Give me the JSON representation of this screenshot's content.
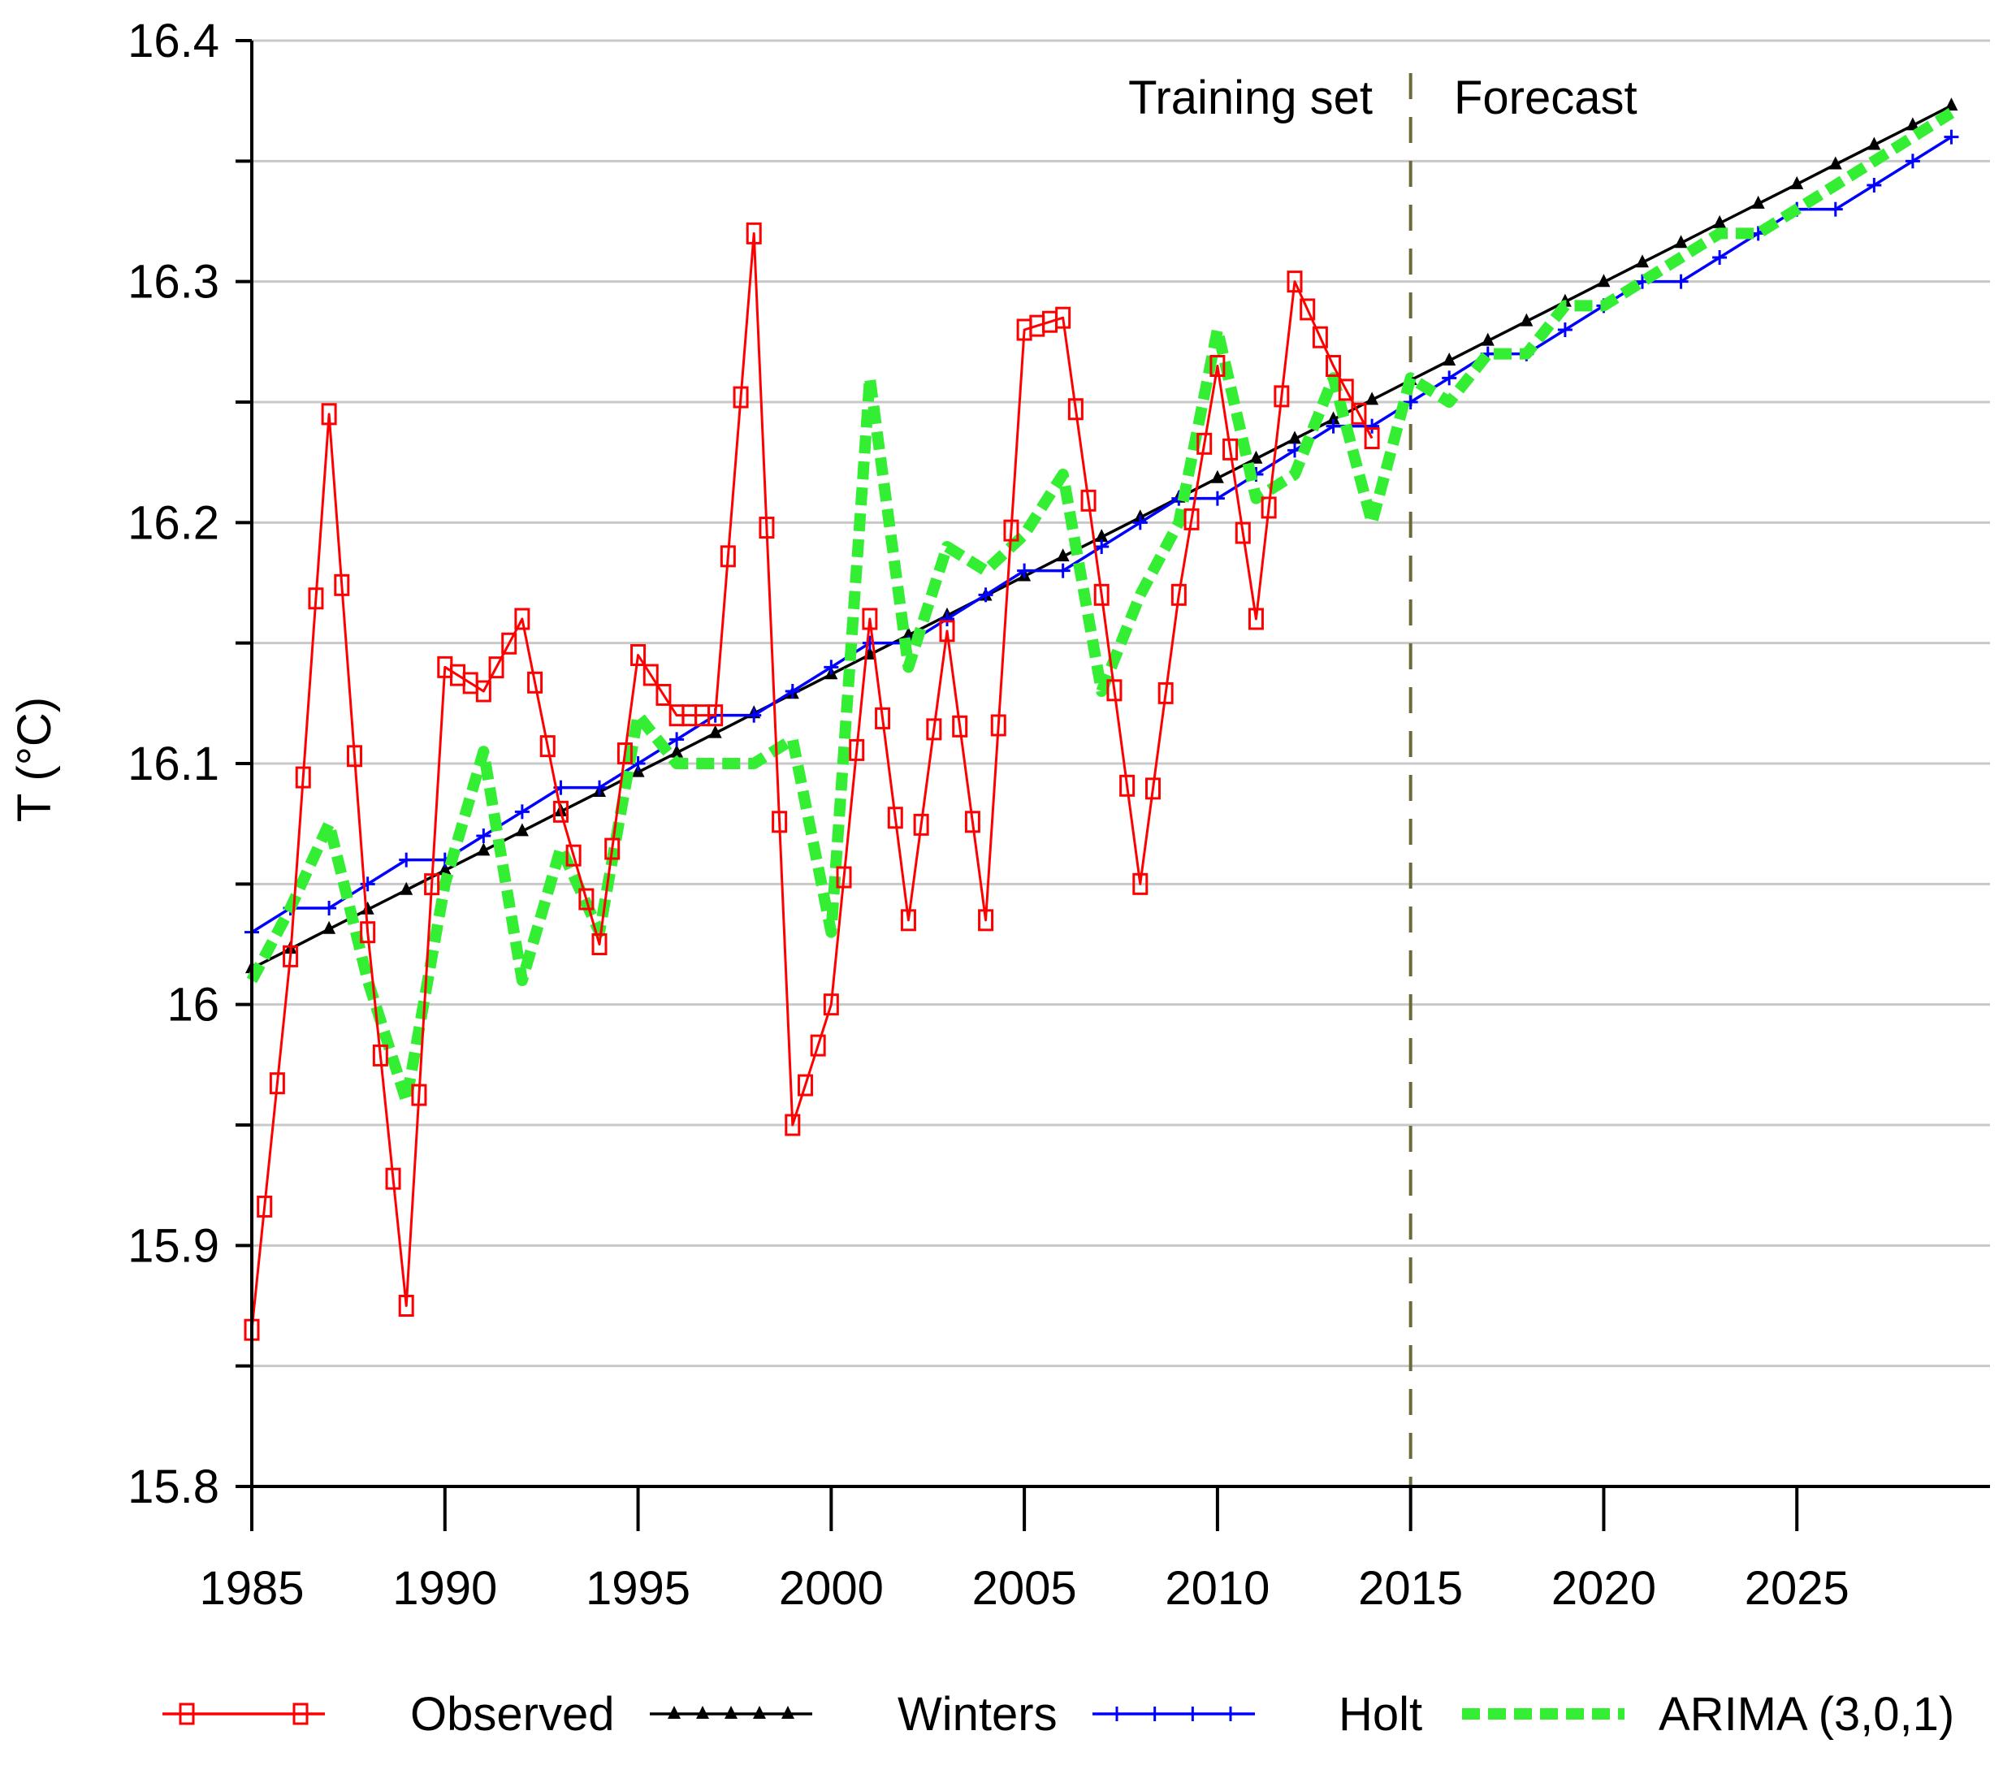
{
  "chart_data": {
    "type": "line",
    "title": "",
    "xlabel": "",
    "ylabel": "T (°C)",
    "xlim": [
      1985,
      2030
    ],
    "ylim": [
      15.8,
      16.4
    ],
    "x_ticks": [
      1985,
      1990,
      1995,
      2000,
      2005,
      2010,
      2015,
      2020,
      2025
    ],
    "y_ticks": [
      15.8,
      15.9,
      16,
      16.1,
      16.2,
      16.3,
      16.4
    ],
    "y_tick_labels": [
      "15.8",
      "15.9",
      "16",
      "16.1",
      "16.2",
      "16.3",
      "16.4"
    ],
    "grid": "horizontal",
    "legend_position": "bottom",
    "divider": {
      "x": 2015,
      "left_label": "Training set",
      "right_label": "Forecast",
      "color": "#6b6b3a"
    },
    "series": [
      {
        "name": "Observed",
        "color": "#ff0000",
        "marker": "square-open",
        "x": [
          1985,
          1986,
          1987,
          1988,
          1989,
          1990,
          1991,
          1992,
          1993,
          1994,
          1995,
          1996,
          1997,
          1998,
          1999,
          2000,
          2001,
          2002,
          2003,
          2004,
          2005,
          2006,
          2007,
          2008,
          2009,
          2010,
          2011,
          2012,
          2013,
          2014
        ],
        "values": [
          15.865,
          16.02,
          16.245,
          16.03,
          15.875,
          16.14,
          16.13,
          16.16,
          16.08,
          16.025,
          16.145,
          16.12,
          16.12,
          16.32,
          15.95,
          16.0,
          16.16,
          16.035,
          16.155,
          16.035,
          16.28,
          16.285,
          16.17,
          16.05,
          16.17,
          16.265,
          16.16,
          16.3,
          16.265,
          16.235
        ]
      },
      {
        "name": "Winters",
        "color": "#000000",
        "marker": "triangle-filled",
        "x": [
          1985,
          1986,
          1987,
          1988,
          1989,
          1990,
          1991,
          1992,
          1993,
          1994,
          1995,
          1996,
          1997,
          1998,
          1999,
          2000,
          2001,
          2002,
          2003,
          2004,
          2005,
          2006,
          2007,
          2008,
          2009,
          2010,
          2011,
          2012,
          2013,
          2014,
          2015,
          2016,
          2017,
          2018,
          2019,
          2020,
          2021,
          2022,
          2023,
          2024,
          2025,
          2026,
          2027,
          2028,
          2029
        ],
        "values": [
          16.015,
          16.0231,
          16.0313,
          16.0394,
          16.0475,
          16.0557,
          16.0638,
          16.0719,
          16.0801,
          16.0882,
          16.0964,
          16.1045,
          16.1126,
          16.1208,
          16.1289,
          16.137,
          16.1452,
          16.1533,
          16.1614,
          16.1696,
          16.1777,
          16.1859,
          16.194,
          16.2021,
          16.2103,
          16.2184,
          16.2265,
          16.2347,
          16.2428,
          16.2509,
          16.2591,
          16.2672,
          16.2754,
          16.2835,
          16.2916,
          16.2998,
          16.3079,
          16.316,
          16.3242,
          16.3323,
          16.3404,
          16.3486,
          16.3567,
          16.3648,
          16.373
        ]
      },
      {
        "name": "Holt",
        "color": "#0000ff",
        "marker": "plus",
        "x": [
          1985,
          1986,
          1987,
          1988,
          1989,
          1990,
          1991,
          1992,
          1993,
          1994,
          1995,
          1996,
          1997,
          1998,
          1999,
          2000,
          2001,
          2002,
          2003,
          2004,
          2005,
          2006,
          2007,
          2008,
          2009,
          2010,
          2011,
          2012,
          2013,
          2014,
          2015,
          2016,
          2017,
          2018,
          2019,
          2020,
          2021,
          2022,
          2023,
          2024,
          2025,
          2026,
          2027,
          2028,
          2029
        ],
        "values": [
          16.03,
          16.04,
          16.04,
          16.05,
          16.06,
          16.06,
          16.07,
          16.08,
          16.09,
          16.09,
          16.1,
          16.11,
          16.12,
          16.12,
          16.13,
          16.14,
          16.15,
          16.15,
          16.16,
          16.17,
          16.18,
          16.18,
          16.19,
          16.2,
          16.21,
          16.21,
          16.22,
          16.23,
          16.24,
          16.24,
          16.25,
          16.26,
          16.27,
          16.27,
          16.28,
          16.29,
          16.3,
          16.3,
          16.31,
          16.32,
          16.33,
          16.33,
          16.34,
          16.35,
          16.36
        ]
      },
      {
        "name": "ARIMA (3,0,1)",
        "color": "#33ee33",
        "marker": "square-filled-dashed",
        "x": [
          1985,
          1986,
          1987,
          1988,
          1989,
          1990,
          1991,
          1992,
          1993,
          1994,
          1995,
          1996,
          1997,
          1998,
          1999,
          2000,
          2001,
          2002,
          2003,
          2004,
          2005,
          2006,
          2007,
          2008,
          2009,
          2010,
          2011,
          2012,
          2013,
          2014,
          2015,
          2016,
          2017,
          2018,
          2019,
          2020,
          2021,
          2022,
          2023,
          2024,
          2025,
          2026,
          2027,
          2028,
          2029
        ],
        "values": [
          16.01,
          16.04,
          16.075,
          16.01,
          15.96,
          16.05,
          16.105,
          16.01,
          16.065,
          16.03,
          16.12,
          16.1,
          16.1,
          16.1,
          16.11,
          16.03,
          16.26,
          16.14,
          16.19,
          16.18,
          16.195,
          16.22,
          16.13,
          16.17,
          16.2,
          16.28,
          16.21,
          16.22,
          16.26,
          16.2,
          16.26,
          16.25,
          16.27,
          16.27,
          16.29,
          16.29,
          16.3,
          16.31,
          16.32,
          16.32,
          16.33,
          16.34,
          16.35,
          16.36,
          16.37
        ]
      }
    ]
  }
}
